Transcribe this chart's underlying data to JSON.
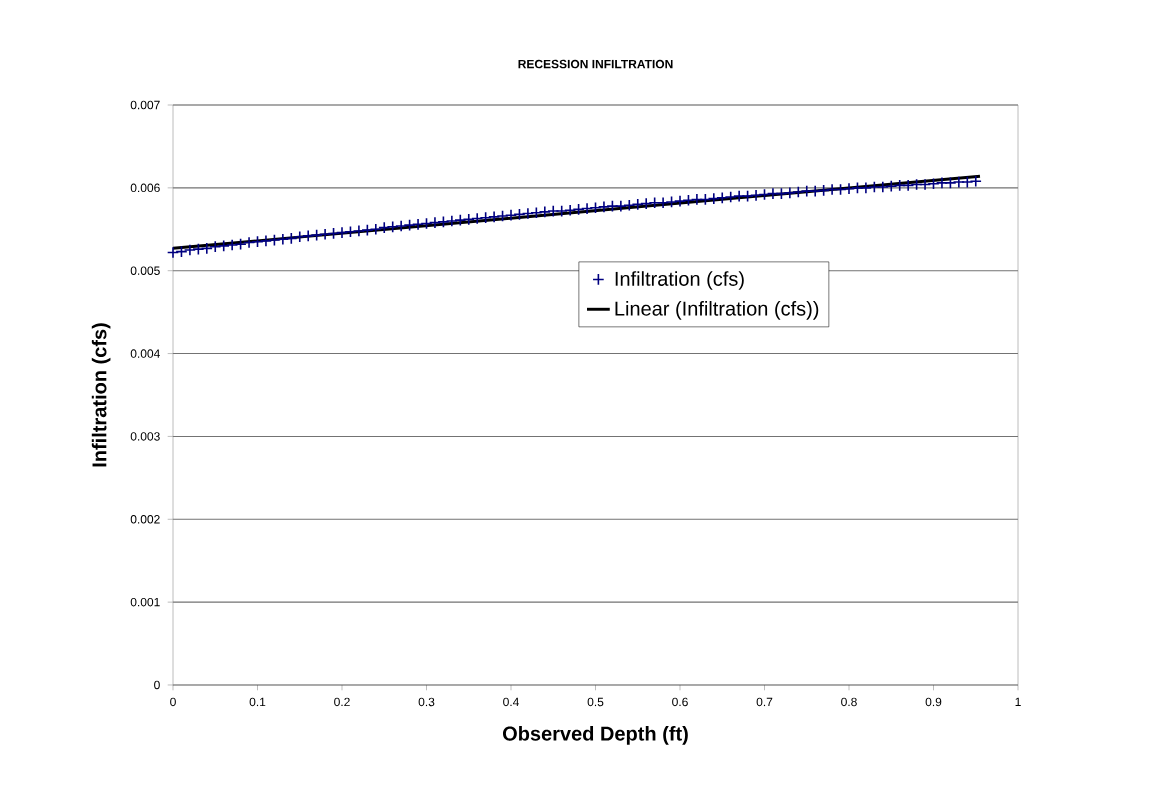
{
  "chart_data": {
    "type": "scatter",
    "title": "RECESSION INFILTRATION",
    "xlabel": "Observed Depth (ft)",
    "ylabel": "Infiltration (cfs)",
    "xlim": [
      0,
      1
    ],
    "xticks": [
      0,
      0.1,
      0.2,
      0.3,
      0.4,
      0.5,
      0.6,
      0.7,
      0.8,
      0.9,
      1
    ],
    "ylim": [
      0,
      0.007
    ],
    "yticks": [
      0,
      0.001,
      0.002,
      0.003,
      0.004,
      0.005,
      0.006,
      0.007
    ],
    "grid": "y",
    "legend": "right",
    "x": [
      0,
      0.01,
      0.02,
      0.03,
      0.04,
      0.05,
      0.06,
      0.07,
      0.08,
      0.09,
      0.1,
      0.11,
      0.12,
      0.13,
      0.14,
      0.15,
      0.16,
      0.17,
      0.18,
      0.19,
      0.2,
      0.21,
      0.22,
      0.23,
      0.24,
      0.25,
      0.26,
      0.27,
      0.28,
      0.29,
      0.3,
      0.31,
      0.32,
      0.33,
      0.34,
      0.35,
      0.36,
      0.37,
      0.38,
      0.39,
      0.4,
      0.41,
      0.42,
      0.43,
      0.44,
      0.45,
      0.46,
      0.47,
      0.48,
      0.49,
      0.5,
      0.51,
      0.52,
      0.53,
      0.54,
      0.55,
      0.56,
      0.57,
      0.58,
      0.59,
      0.6,
      0.61,
      0.62,
      0.63,
      0.64,
      0.65,
      0.66,
      0.67,
      0.68,
      0.69,
      0.7,
      0.71,
      0.72,
      0.73,
      0.74,
      0.75,
      0.76,
      0.77,
      0.78,
      0.79,
      0.8,
      0.81,
      0.82,
      0.83,
      0.84,
      0.85,
      0.86,
      0.87,
      0.88,
      0.89,
      0.9,
      0.91,
      0.92,
      0.93,
      0.94,
      0.95
    ],
    "series": [
      {
        "name": "Infiltration (cfs)",
        "color": "#000080",
        "marker": "cross",
        "values": [
          0.00522,
          0.00523,
          0.00525,
          0.00526,
          0.00527,
          0.00529,
          0.0053,
          0.00531,
          0.00532,
          0.00534,
          0.00535,
          0.00536,
          0.00537,
          0.00538,
          0.00539,
          0.00541,
          0.00542,
          0.00543,
          0.00544,
          0.00545,
          0.00546,
          0.00547,
          0.00548,
          0.00549,
          0.0055,
          0.00552,
          0.00553,
          0.00554,
          0.00555,
          0.00556,
          0.00557,
          0.00558,
          0.00559,
          0.0056,
          0.00561,
          0.00562,
          0.00563,
          0.00564,
          0.00565,
          0.00566,
          0.00567,
          0.00568,
          0.00569,
          0.0057,
          0.00571,
          0.00572,
          0.00572,
          0.00573,
          0.00574,
          0.00575,
          0.00576,
          0.00577,
          0.00578,
          0.00578,
          0.00579,
          0.0058,
          0.00581,
          0.00582,
          0.00582,
          0.00583,
          0.00584,
          0.00585,
          0.00586,
          0.00586,
          0.00587,
          0.00588,
          0.00589,
          0.0059,
          0.0059,
          0.00591,
          0.00592,
          0.00593,
          0.00593,
          0.00594,
          0.00595,
          0.00596,
          0.00596,
          0.00597,
          0.00598,
          0.00598,
          0.00599,
          0.006,
          0.006,
          0.00601,
          0.00601,
          0.00602,
          0.00603,
          0.00603,
          0.00604,
          0.00604,
          0.00605,
          0.00606,
          0.00606,
          0.00607,
          0.00607,
          0.00608
        ]
      },
      {
        "name": "Linear (Infiltration (cfs))",
        "type": "line",
        "color": "#000000",
        "x": [
          0,
          0.955
        ],
        "values": [
          0.00527,
          0.00614
        ]
      }
    ]
  }
}
